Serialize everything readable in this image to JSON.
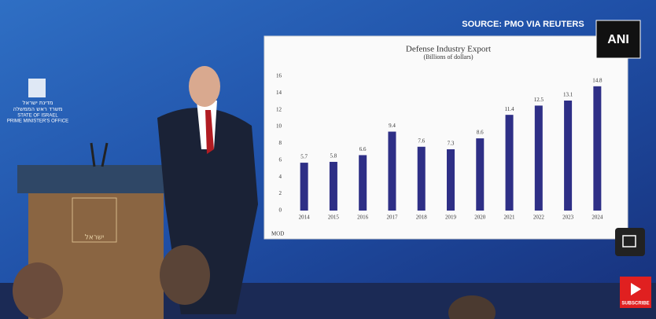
{
  "chart_data": {
    "type": "bar",
    "title": "Defense Industry Export",
    "subtitle": "(Billions of dollars)",
    "categories": [
      "2014",
      "2015",
      "2016",
      "2017",
      "2018",
      "2019",
      "2020",
      "2021",
      "2022",
      "2023",
      "2024"
    ],
    "values": [
      5.7,
      5.8,
      6.6,
      9.4,
      7.6,
      7.3,
      8.6,
      11.4,
      12.5,
      13.1,
      14.8
    ],
    "color": "#2e2f86",
    "ylim": [
      0,
      16
    ],
    "yticks": [
      0,
      2,
      4,
      6,
      8,
      10,
      12,
      14,
      16
    ],
    "grid": false,
    "source_note": "MOD"
  },
  "overlay": {
    "source": "SOURCE: PMO VIA REUTERS",
    "agency": "ANI",
    "subscribe": "SUBSCRIBE",
    "emblem_hebrew_1": "מדינת ישראל",
    "emblem_hebrew_2": "משרד ראש הממשלה",
    "emblem_english_1": "STATE OF ISRAEL",
    "emblem_english_2": "PRIME MINISTER'S OFFICE",
    "podium_text": "ישראל"
  }
}
